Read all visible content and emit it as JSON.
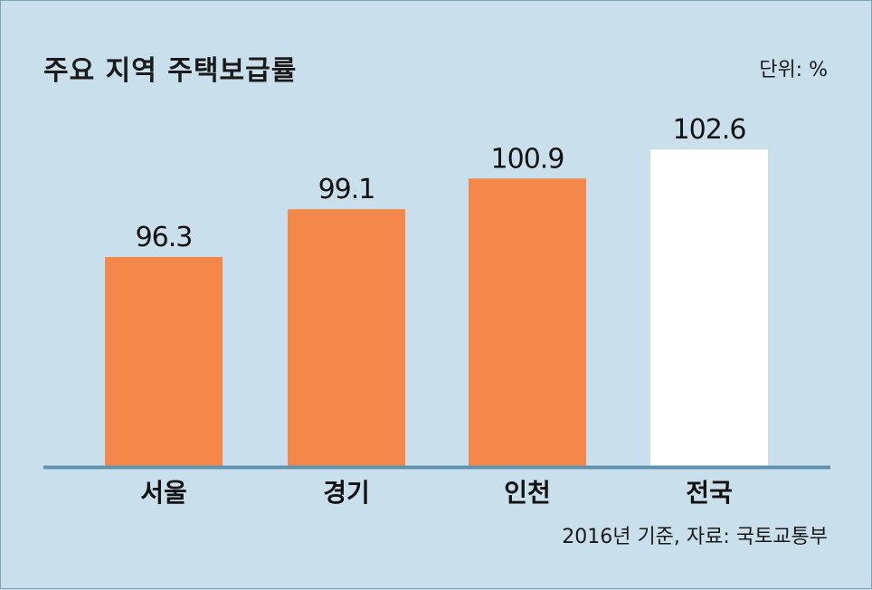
{
  "title": "주요 지역 주택보급률",
  "unit_note": "단위: %",
  "source_note": "2016년 기준, 자료: 국토교통부",
  "colors": {
    "background": "#c9e0ec",
    "bar_default": "#f4874a",
    "bar_highlight": "#ffffff",
    "axis": "#5f93ad"
  },
  "chart_data": {
    "type": "bar",
    "categories": [
      "서울",
      "경기",
      "인천",
      "전국"
    ],
    "values": [
      96.3,
      99.1,
      100.9,
      102.6
    ],
    "value_labels": [
      "96.3",
      "99.1",
      "100.9",
      "102.6"
    ],
    "highlight": [
      "전국"
    ],
    "title": "주요 지역 주택보급률",
    "unit": "%"
  }
}
